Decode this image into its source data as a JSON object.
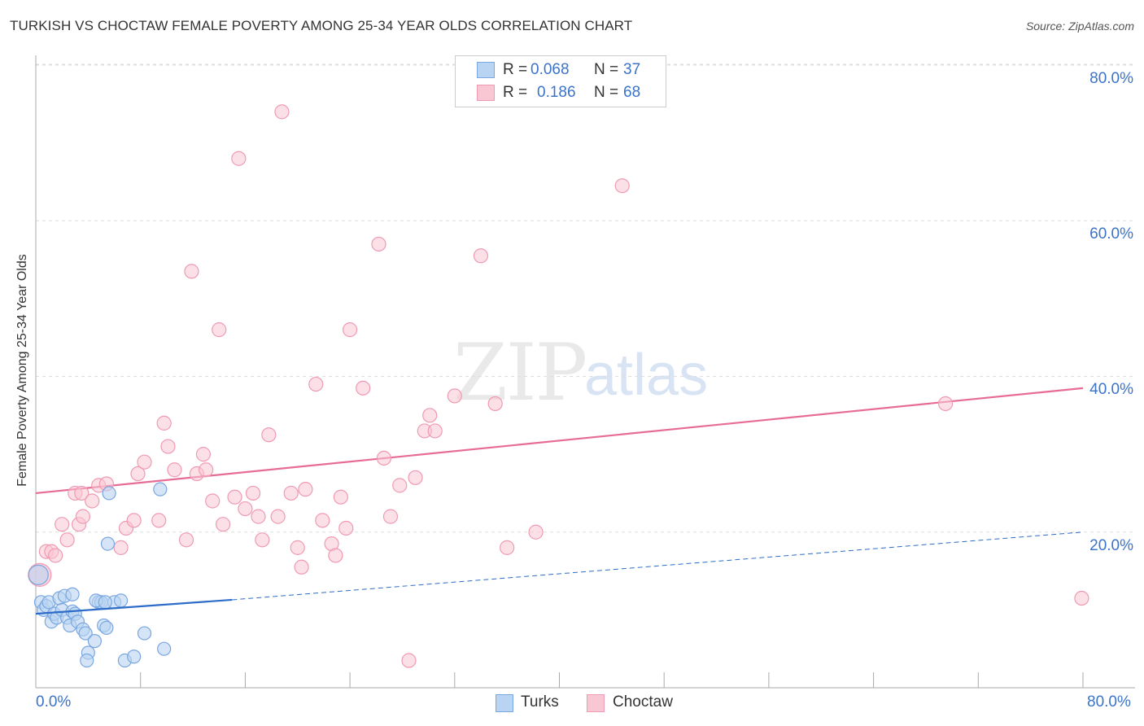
{
  "title": "TURKISH VS CHOCTAW FEMALE POVERTY AMONG 25-34 YEAR OLDS CORRELATION CHART",
  "source": "Source: ZipAtlas.com",
  "watermark": {
    "zip": "ZIP",
    "atlas": "atlas"
  },
  "legend": {
    "r_label": "R =",
    "n_label": "N =",
    "turks": {
      "r": "0.068",
      "n": "37"
    },
    "choctaw": {
      "r": "0.186",
      "n": "68"
    }
  },
  "bottom_legend": {
    "turks": "Turks",
    "choctaw": "Choctaw"
  },
  "x_tick_labels": {
    "min": "0.0%",
    "max": "80.0%"
  },
  "y_tick_labels": [
    "80.0%",
    "60.0%",
    "40.0%",
    "20.0%"
  ],
  "colors": {
    "turks_fill": "#b9d3f2",
    "turks_stroke": "#7aa7e0",
    "turks_line": "#2d6cc8",
    "choctaw_fill": "#f9c6d4",
    "choctaw_stroke": "#ef9ab3",
    "choctaw_line": "#e76c95",
    "tick_text": "#3b73c9"
  },
  "chart_data": {
    "type": "scatter",
    "title": "TURKISH VS CHOCTAW FEMALE POVERTY AMONG 25-34 YEAR OLDS CORRELATION CHART",
    "xlabel": "",
    "ylabel": "Female Poverty Among 25-34 Year Olds",
    "xlim": [
      0,
      80
    ],
    "ylim": [
      0,
      80
    ],
    "grid": true,
    "legend_position": "top-center",
    "series": [
      {
        "name": "Turks",
        "points": [
          [
            0.2,
            14.5
          ],
          [
            0.4,
            11.0
          ],
          [
            0.6,
            10.0
          ],
          [
            0.8,
            10.5
          ],
          [
            1.0,
            11.0
          ],
          [
            1.2,
            8.5
          ],
          [
            1.4,
            9.5
          ],
          [
            1.6,
            9.0
          ],
          [
            1.8,
            11.5
          ],
          [
            2.0,
            10.0
          ],
          [
            2.2,
            11.8
          ],
          [
            2.4,
            9.0
          ],
          [
            2.6,
            8.0
          ],
          [
            2.8,
            9.8
          ],
          [
            3.0,
            9.5
          ],
          [
            3.2,
            8.5
          ],
          [
            2.8,
            12.0
          ],
          [
            3.6,
            7.5
          ],
          [
            3.8,
            7.0
          ],
          [
            4.0,
            4.5
          ],
          [
            3.9,
            3.5
          ],
          [
            4.5,
            6.0
          ],
          [
            4.8,
            11.0
          ],
          [
            5.0,
            11.0
          ],
          [
            5.2,
            8.0
          ],
          [
            5.4,
            7.7
          ],
          [
            4.6,
            11.2
          ],
          [
            5.5,
            18.5
          ],
          [
            5.6,
            25.0
          ],
          [
            6.0,
            11.0
          ],
          [
            6.5,
            11.2
          ],
          [
            6.8,
            3.5
          ],
          [
            7.5,
            4.0
          ],
          [
            8.3,
            7.0
          ],
          [
            9.5,
            25.5
          ],
          [
            9.8,
            5.0
          ],
          [
            5.3,
            11.0
          ]
        ],
        "trend": {
          "x0": 0,
          "y0": 9.5,
          "x1": 15,
          "y1": 11.3,
          "dashed_to": {
            "x": 80,
            "y": 20.0
          }
        }
      },
      {
        "name": "Choctaw",
        "points": [
          [
            0.3,
            14.5
          ],
          [
            0.8,
            17.5
          ],
          [
            1.2,
            17.5
          ],
          [
            1.5,
            17.0
          ],
          [
            2.0,
            21.0
          ],
          [
            2.4,
            19.0
          ],
          [
            3.3,
            21.0
          ],
          [
            3.6,
            22.0
          ],
          [
            3.0,
            25.0
          ],
          [
            3.5,
            25.0
          ],
          [
            4.8,
            26.0
          ],
          [
            4.3,
            24.0
          ],
          [
            5.4,
            26.2
          ],
          [
            6.5,
            18.0
          ],
          [
            6.9,
            20.5
          ],
          [
            7.5,
            21.5
          ],
          [
            7.8,
            27.5
          ],
          [
            8.3,
            29.0
          ],
          [
            9.4,
            21.5
          ],
          [
            9.8,
            34.0
          ],
          [
            10.1,
            31.0
          ],
          [
            10.6,
            28.0
          ],
          [
            11.5,
            19.0
          ],
          [
            11.9,
            53.5
          ],
          [
            12.3,
            27.5
          ],
          [
            12.8,
            30.0
          ],
          [
            13.0,
            28.0
          ],
          [
            13.5,
            24.0
          ],
          [
            14.3,
            21.0
          ],
          [
            14.0,
            46.0
          ],
          [
            15.2,
            24.5
          ],
          [
            15.5,
            68.0
          ],
          [
            16.0,
            23.0
          ],
          [
            16.6,
            25.0
          ],
          [
            17.0,
            22.0
          ],
          [
            17.3,
            19.0
          ],
          [
            17.8,
            32.5
          ],
          [
            18.5,
            22.0
          ],
          [
            18.8,
            74.0
          ],
          [
            19.5,
            25.0
          ],
          [
            20.0,
            18.0
          ],
          [
            20.3,
            15.5
          ],
          [
            20.6,
            25.5
          ],
          [
            21.4,
            39.0
          ],
          [
            21.9,
            21.5
          ],
          [
            22.6,
            18.5
          ],
          [
            22.9,
            17.0
          ],
          [
            23.3,
            24.5
          ],
          [
            23.7,
            20.5
          ],
          [
            24.0,
            46.0
          ],
          [
            25.0,
            38.5
          ],
          [
            26.2,
            57.0
          ],
          [
            26.6,
            29.5
          ],
          [
            27.1,
            22.0
          ],
          [
            27.8,
            26.0
          ],
          [
            28.5,
            3.5
          ],
          [
            29.0,
            27.0
          ],
          [
            29.7,
            33.0
          ],
          [
            30.1,
            35.0
          ],
          [
            30.5,
            33.0
          ],
          [
            32.0,
            37.5
          ],
          [
            34.0,
            55.5
          ],
          [
            35.1,
            36.5
          ],
          [
            36.0,
            18.0
          ],
          [
            38.2,
            20.0
          ],
          [
            44.8,
            64.5
          ],
          [
            69.5,
            36.5
          ],
          [
            79.9,
            11.5
          ]
        ],
        "trend": {
          "x0": 0,
          "y0": 25.0,
          "x1": 80,
          "y1": 38.5
        }
      }
    ]
  }
}
